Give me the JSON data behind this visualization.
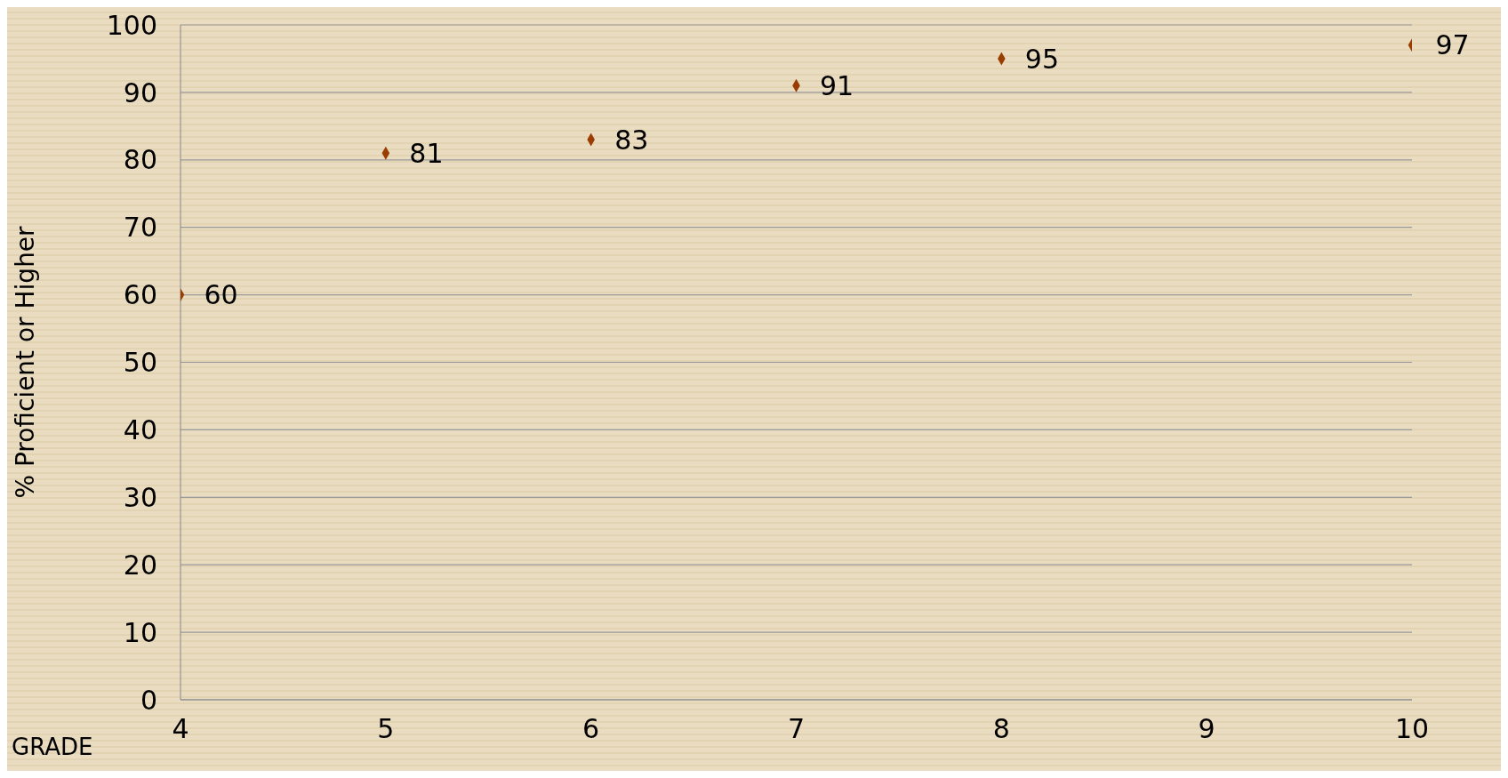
{
  "chart_data": {
    "type": "scatter",
    "xlabel": "GRADE",
    "ylabel": "% Proficient or Higher",
    "x": [
      4,
      5,
      6,
      7,
      8,
      10
    ],
    "values": [
      60,
      81,
      83,
      91,
      95,
      97
    ],
    "color": "#993d00",
    "marker": "diamond",
    "data_labels": true,
    "xlim": [
      4,
      10
    ],
    "xticks": [
      4,
      5,
      6,
      7,
      8,
      9,
      10
    ],
    "ylim": [
      0,
      100
    ],
    "yticks": [
      0,
      10,
      20,
      30,
      40,
      50,
      60,
      70,
      80,
      90,
      100
    ],
    "grid": "y"
  }
}
